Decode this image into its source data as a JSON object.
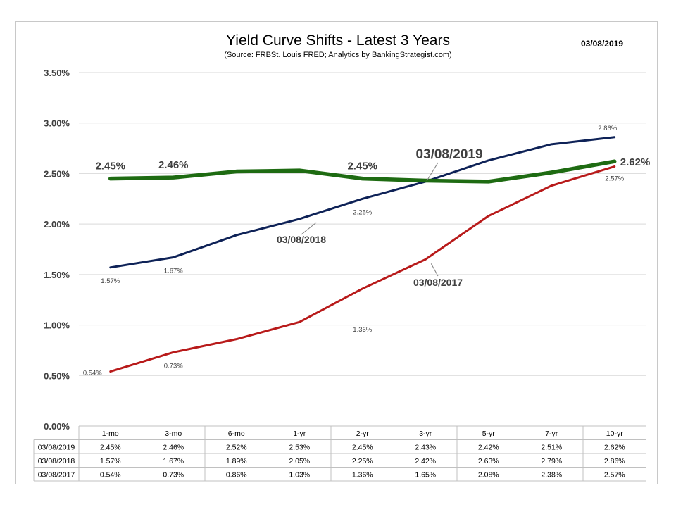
{
  "chart_data": {
    "type": "line",
    "title": "Yield Curve Shifts - Latest 3 Years",
    "subtitle": "(Source: FRBSt. Louis FRED; Analytics by BankingStrategist.com)",
    "date": "03/08/2019",
    "categories": [
      "1-mo",
      "3-mo",
      "6-mo",
      "1-yr",
      "2-yr",
      "3-yr",
      "5-yr",
      "7-yr",
      "10-yr"
    ],
    "ylim": [
      0,
      3.5
    ],
    "yticks": [
      "0.00%",
      "0.50%",
      "1.00%",
      "1.50%",
      "2.00%",
      "2.50%",
      "3.00%",
      "3.50%"
    ],
    "grid": true,
    "series": [
      {
        "name": "03/08/2019",
        "color": "#1e6b12",
        "values": [
          2.45,
          2.46,
          2.52,
          2.53,
          2.45,
          2.43,
          2.42,
          2.51,
          2.62
        ],
        "labels": [
          "2.45%",
          "2.46%",
          "2.52%",
          "2.53%",
          "2.45%",
          "2.43%",
          "2.42%",
          "2.51%",
          "2.62%"
        ]
      },
      {
        "name": "03/08/2018",
        "color": "#0e2257",
        "values": [
          1.57,
          1.67,
          1.89,
          2.05,
          2.25,
          2.42,
          2.63,
          2.79,
          2.86
        ],
        "labels": [
          "1.57%",
          "1.67%",
          "1.89%",
          "2.05%",
          "2.25%",
          "2.42%",
          "2.63%",
          "2.79%",
          "2.86%"
        ]
      },
      {
        "name": "03/08/2017",
        "color": "#b81a1a",
        "values": [
          0.54,
          0.73,
          0.86,
          1.03,
          1.36,
          1.65,
          2.08,
          2.38,
          2.57
        ],
        "labels": [
          "0.54%",
          "0.73%",
          "0.86%",
          "1.03%",
          "1.36%",
          "1.65%",
          "2.08%",
          "2.38%",
          "2.57%"
        ]
      }
    ]
  }
}
